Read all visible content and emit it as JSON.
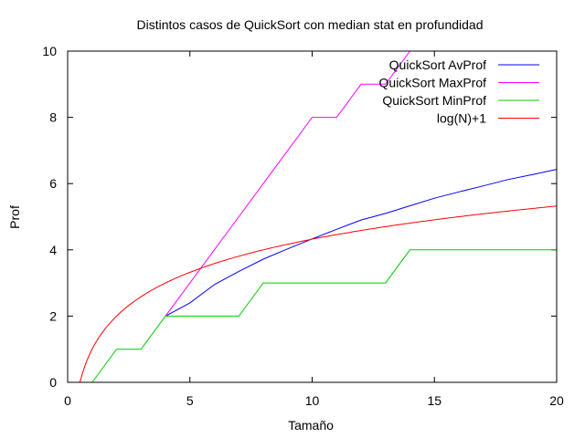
{
  "chart_data": {
    "type": "line",
    "title": "Distintos casos de QuickSort con median stat en profundidad",
    "xlabel": "Tamaño",
    "ylabel": "Prof",
    "xlim": [
      0,
      20
    ],
    "ylim": [
      0,
      10
    ],
    "xticks": [
      0,
      5,
      10,
      15,
      20
    ],
    "yticks": [
      0,
      2,
      4,
      6,
      8,
      10
    ],
    "grid": false,
    "legend_position": "top-right",
    "series": [
      {
        "name": "QuickSort AvProf",
        "color": "#0000ff",
        "x": [
          4,
          5,
          6,
          7,
          8,
          9,
          10,
          11,
          12,
          13,
          14,
          15,
          16,
          17,
          18,
          19,
          20
        ],
        "y": [
          2.0,
          2.4,
          2.95,
          3.35,
          3.72,
          4.03,
          4.33,
          4.62,
          4.9,
          5.1,
          5.33,
          5.56,
          5.75,
          5.93,
          6.12,
          6.27,
          6.43
        ]
      },
      {
        "name": "QuickSort MaxProf",
        "color": "#ff00ff",
        "x": [
          4,
          5,
          6,
          7,
          8,
          9,
          10,
          11,
          12,
          13,
          14
        ],
        "y": [
          2,
          3,
          4,
          5,
          6,
          7,
          8,
          8,
          9,
          9,
          10
        ]
      },
      {
        "name": "QuickSort MinProf",
        "color": "#00cc00",
        "x": [
          1,
          2,
          3,
          4,
          5,
          6,
          7,
          8,
          9,
          10,
          11,
          12,
          13,
          14,
          15,
          16,
          17,
          18,
          19,
          20
        ],
        "y": [
          0,
          1,
          1,
          2,
          2,
          2,
          2,
          3,
          3,
          3,
          3,
          3,
          3,
          4,
          4,
          4,
          4,
          4,
          4,
          4
        ]
      },
      {
        "name": "log(N)+1",
        "color": "#ff0000",
        "function": "log2(x)+1",
        "x_range": [
          0.5,
          20
        ]
      }
    ]
  }
}
